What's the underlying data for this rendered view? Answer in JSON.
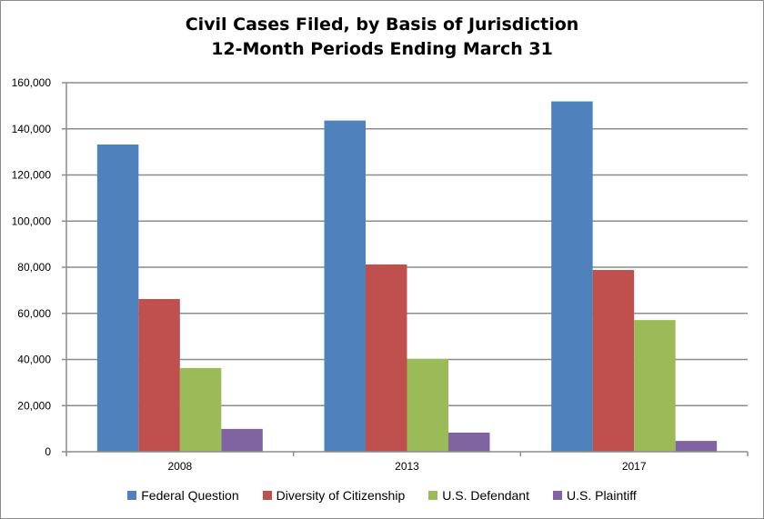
{
  "chart_data": {
    "type": "bar",
    "title": "Civil Cases Filed, by Basis of Jurisdiction",
    "subtitle": "12-Month Periods Ending March 31",
    "xlabel": "",
    "ylabel": "",
    "categories": [
      "2008",
      "2013",
      "2017"
    ],
    "series": [
      {
        "name": "Federal Question",
        "color": "#4f81bd",
        "values": [
          133200,
          143600,
          151900
        ]
      },
      {
        "name": "Diversity of Citizenship",
        "color": "#c0504d",
        "values": [
          66200,
          81200,
          78800
        ]
      },
      {
        "name": "U.S. Defendant",
        "color": "#9bbb59",
        "values": [
          36300,
          40200,
          57100
        ]
      },
      {
        "name": "U.S. Plaintiff",
        "color": "#8064a2",
        "values": [
          9900,
          8300,
          4700
        ]
      }
    ],
    "ylim": [
      0,
      160000
    ],
    "yticks": [
      0,
      20000,
      40000,
      60000,
      80000,
      100000,
      120000,
      140000,
      160000
    ],
    "ytick_labels": [
      "0",
      "20,000",
      "40,000",
      "60,000",
      "80,000",
      "100,000",
      "120,000",
      "140,000",
      "160,000"
    ],
    "grid": true,
    "legend_position": "bottom"
  }
}
